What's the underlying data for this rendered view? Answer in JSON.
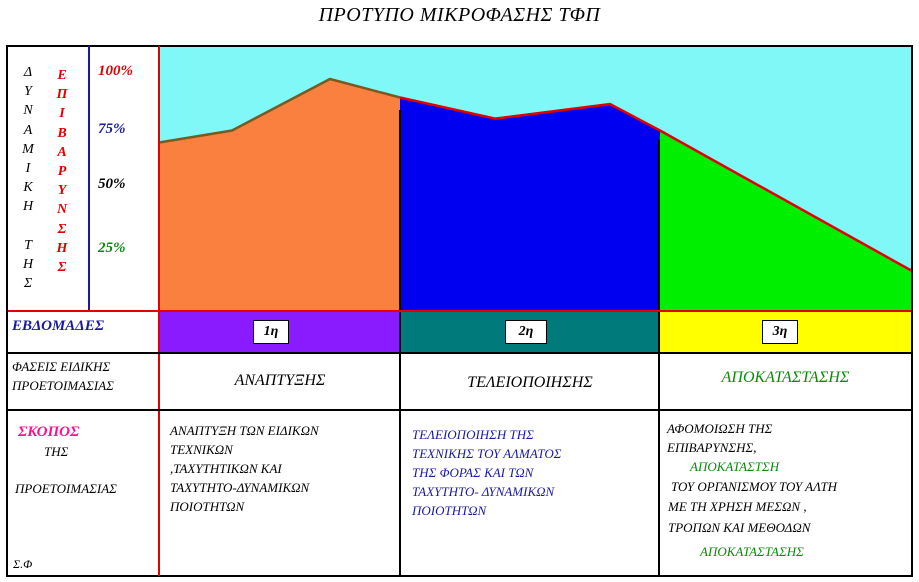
{
  "title": "ΠΡΟΤΥΠΟ ΜΙΚΡΟΦΑΣΗΣ   ΤΦΠ",
  "left_labels": {
    "dynamics": "Δ\nΥ\nΝ\nΑ\nΜ\nΙ\nΚ\nΗ\n\nΤ\nΗ\nΣ",
    "load": "Ε\nΠ\nΙ\nΒ\nΑ\nΡ\nΥ\nΝ\nΣ\nΗ\nΣ"
  },
  "percentages": [
    {
      "label": "100%",
      "color": "#e00000"
    },
    {
      "label": "75%",
      "color": "#1a1aa0"
    },
    {
      "label": "50%",
      "color": "#000000"
    },
    {
      "label": "25%",
      "color": "#0a8a0a"
    }
  ],
  "area_profile": {
    "sky_color": "#80f8f8",
    "segments": [
      {
        "week": "1η",
        "color": "#fa8040",
        "band_color": "#8a1aff",
        "levels": [
          0.635,
          0.68,
          0.875,
          0.805
        ]
      },
      {
        "week": "2η",
        "color": "#0000f0",
        "band_color": "#007a7a",
        "levels": [
          0.805,
          0.725,
          0.78,
          0.68
        ]
      },
      {
        "week": "3η",
        "color": "#00ee00",
        "band_color": "#ffff00",
        "levels": [
          0.68,
          0.15
        ]
      }
    ]
  },
  "rows": {
    "weeks_label": "ΕΒΔΟΜΑΔΕΣ",
    "phases_label": "ΦΑΣΕΙΣ ΕΙΔΙΚΗΣ\nΠΡΟΕΤΟΙΜΑΣΙΑΣ",
    "phases": [
      "ΑΝΑΠΤΥΞΗΣ",
      "ΤΕΛΕΙΟΠΟΙΗΣΗΣ",
      "ΑΠΟΚΑΤΑΣΤΑΣΗΣ"
    ],
    "purpose_title": "ΣΚΟΠΟΣ",
    "purpose_of": "ΤΗΣ",
    "purpose_prep": "ΠΡΟΕΤΟΙΜΑΣΙΑΣ",
    "footer_note": "Σ.Φ",
    "purposes": [
      "ΑΝΑΠΤΥΞΗ ΤΩΝ ΕΙΔΙΚΩΝ\n     ΤΕΧΝΙΚΩΝ\n     ,ΤΑΧΥΤΗΤΙΚΩΝ ΚΑΙ\n     ΤΑΧΥΤΗΤΟ-ΔΥΝΑΜΙΚΩΝ\n     ΠΟΙΟΤΗΤΩΝ",
      "ΤΕΛΕΙΟΠΟΙΗΣΗ ΤΗΣ\nΤΕΧΝΙΚΗΣ ΤΟΥ ΑΛΜΑΤΟΣ\nΤΗΣ ΦΟΡΑΣ ΚΑΙ ΤΩΝ\nΤΑΧΥΤΗΤΟ- ΔΥΝΑΜΙΚΩΝ\nΠΟΙΟΤΗΤΩΝ"
    ],
    "purpose3": {
      "line1": "ΑΦΟΜΟΙΩΣΗ ΤΗΣ",
      "line2": "ΕΠΙΒΑΡΥΝΣΗΣ,",
      "line3": "ΑΠΟΚΑΤΑΣΤΣΗ",
      "line4": "ΤΟΥ ΟΡΓΑΝΙΣΜΟΥ ΤΟΥ   ΑΛΤΗ",
      "line5": "ΜΕ ΤΗ ΧΡΗΣΗ   ΜΕΣΩΝ ,",
      "line6": "ΤΡΟΠΩΝ ΚΑΙ     ΜΕΘΟΔΩΝ",
      "line7": "ΑΠΟΚΑΤΑΣΤΑΣΗΣ"
    }
  },
  "colors": {
    "accent_red": "#e00000",
    "pink": "#ff1090",
    "navy": "#1a1aa0",
    "green": "#0a8a0a",
    "purple_text": "#3010a0"
  }
}
